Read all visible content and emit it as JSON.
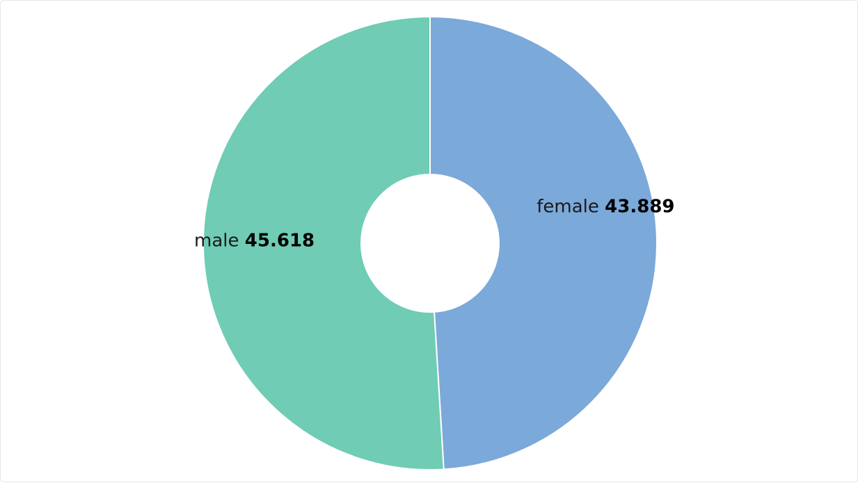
{
  "chart_data": {
    "type": "pie",
    "variant": "donut",
    "slices": [
      {
        "label": "female",
        "value": 43.889,
        "value_text": "43.889",
        "color": "#7ba9d9"
      },
      {
        "label": "male",
        "value": 45.618,
        "value_text": "45.618",
        "color": "#70ccb4"
      }
    ],
    "start": "top",
    "direction": "clockwise",
    "legend": "none",
    "title": ""
  }
}
